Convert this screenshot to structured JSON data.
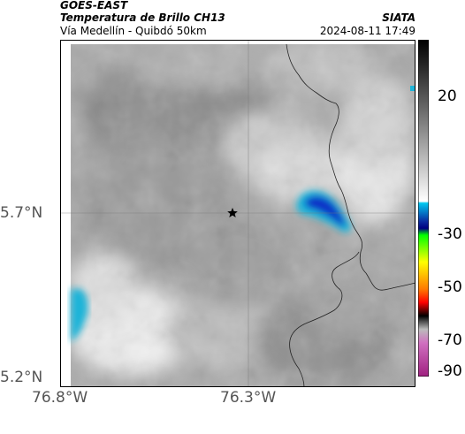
{
  "header": {
    "satellite": "GOES-EAST",
    "product": "Temperatura de Brillo CH13",
    "region": "Vía Medellín - Quibdó 50km",
    "org": "SIATA",
    "datetime": "2024-08-11 17:49"
  },
  "axes": {
    "lat_labels": [
      "5.7°N",
      "5.2°N"
    ],
    "lon_labels": [
      "76.8°W",
      "76.3°W"
    ]
  },
  "colorbar": {
    "ticks": [
      "20",
      "-30",
      "-50",
      "-70",
      "-90"
    ]
  },
  "map": {
    "marker": "star-icon",
    "colors": {
      "cloud_dark": "#8a8a8a",
      "cloud_light": "#f2f2f2",
      "cold_blue": "#0a30c8",
      "cold_cyan": "#1eb4d8"
    }
  }
}
